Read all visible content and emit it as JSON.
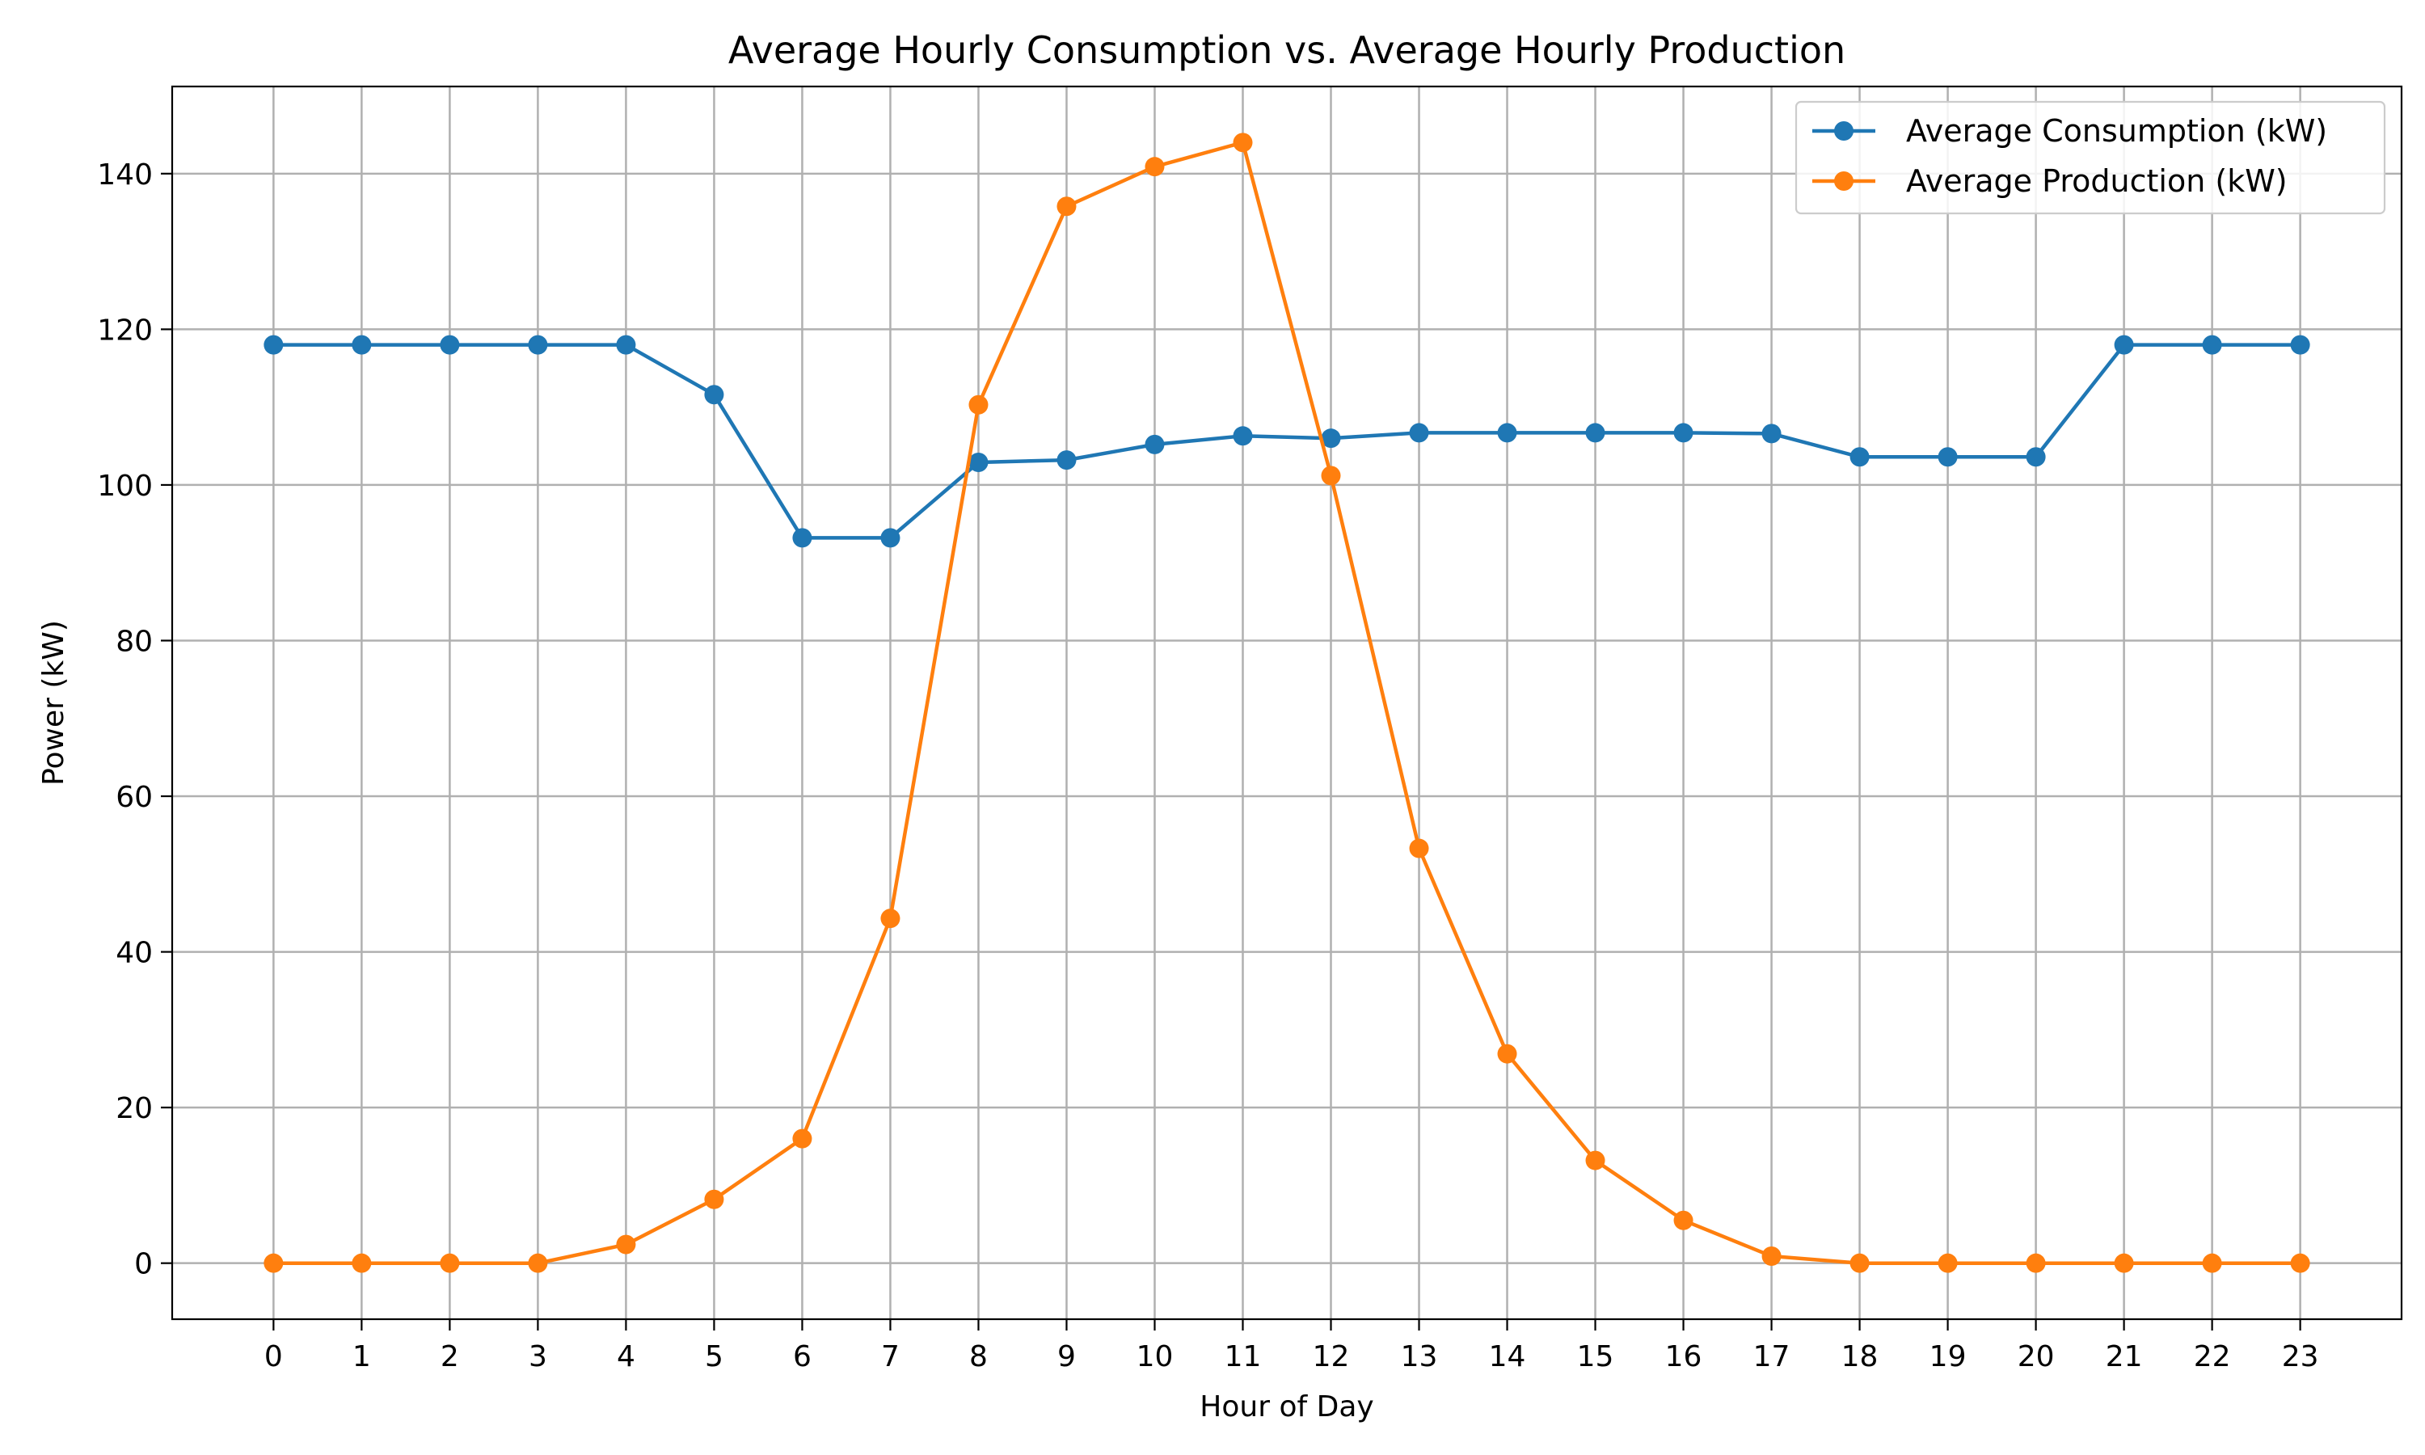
{
  "chart_data": {
    "type": "line",
    "title": "Average Hourly Consumption vs. Average Hourly Production",
    "xlabel": "Hour of Day",
    "ylabel": "Power (kW)",
    "x": [
      0,
      1,
      2,
      3,
      4,
      5,
      6,
      7,
      8,
      9,
      10,
      11,
      12,
      13,
      14,
      15,
      16,
      17,
      18,
      19,
      20,
      21,
      22,
      23
    ],
    "x_ticks": [
      "0",
      "1",
      "2",
      "3",
      "4",
      "5",
      "6",
      "7",
      "8",
      "9",
      "10",
      "11",
      "12",
      "13",
      "14",
      "15",
      "16",
      "17",
      "18",
      "19",
      "20",
      "21",
      "22",
      "23"
    ],
    "xlim": [
      -1.15,
      24.15
    ],
    "ylim": [
      -7.2,
      151.2
    ],
    "y_ticks": [
      0,
      20,
      40,
      60,
      80,
      100,
      120,
      140
    ],
    "grid": true,
    "legend_position": "top-right",
    "series": [
      {
        "name": "Average Consumption (kW)",
        "color": "#1f77b4",
        "marker": "circle",
        "values": [
          118,
          118,
          118,
          118,
          118,
          111.6,
          93.2,
          93.2,
          102.9,
          103.2,
          105.2,
          106.3,
          106.0,
          106.7,
          106.7,
          106.7,
          106.7,
          106.6,
          103.6,
          103.6,
          103.6,
          118,
          118,
          118
        ]
      },
      {
        "name": "Average Production (kW)",
        "color": "#ff7f0e",
        "marker": "circle",
        "values": [
          0,
          0,
          0,
          0,
          2.4,
          8.2,
          16.0,
          44.3,
          110.3,
          135.8,
          140.9,
          144.0,
          101.2,
          53.3,
          26.9,
          13.2,
          5.5,
          0.9,
          0,
          0,
          0,
          0,
          0,
          0
        ]
      }
    ]
  }
}
